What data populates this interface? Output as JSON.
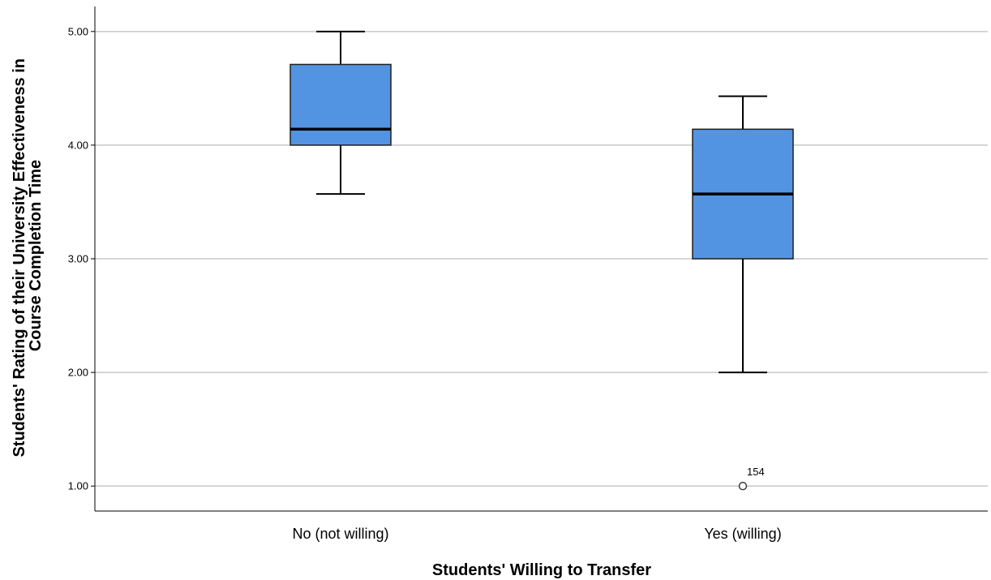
{
  "chart_data": {
    "type": "boxplot",
    "title": "",
    "xlabel": "Students' Willing to Transfer",
    "ylabel_lines": [
      "Students' Rating of their University Effectiveness in",
      "Course Completion Time"
    ],
    "ylim": [
      0.78,
      5.22
    ],
    "yticks": [
      1.0,
      2.0,
      3.0,
      4.0,
      5.0
    ],
    "ytick_labels": [
      "1.00",
      "2.00",
      "3.00",
      "4.00",
      "5.00"
    ],
    "grid": "horizontal",
    "box_color": "#5294E2",
    "categories": [
      "No (not willing)",
      "Yes (willing)"
    ],
    "boxes": [
      {
        "category": "No (not willing)",
        "whisker_low": 3.57,
        "q1": 4.0,
        "median": 4.14,
        "q3": 4.71,
        "whisker_high": 5.0,
        "outliers": []
      },
      {
        "category": "Yes (willing)",
        "whisker_low": 2.0,
        "q1": 3.0,
        "median": 3.57,
        "q3": 4.14,
        "whisker_high": 4.43,
        "outliers": [
          {
            "value": 1.0,
            "label": "154"
          }
        ]
      }
    ]
  }
}
